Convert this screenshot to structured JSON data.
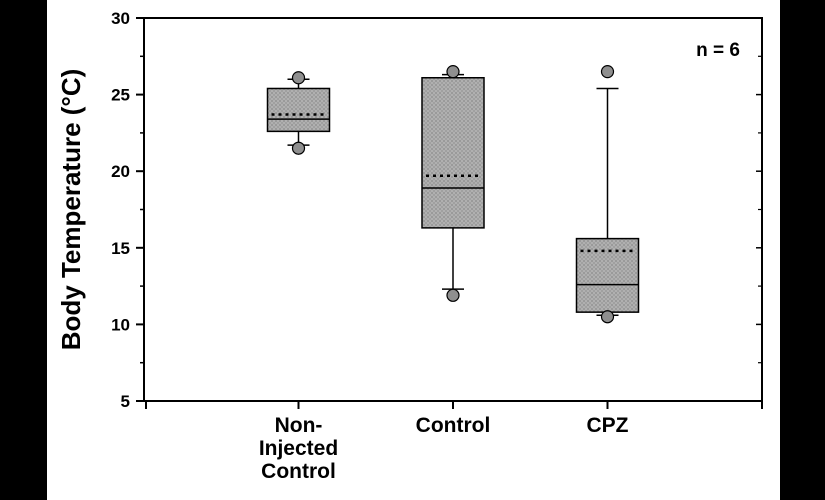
{
  "chart_data": {
    "type": "box",
    "ylabel": "Body Temperature",
    "yunit": "(°C)",
    "ylim": [
      5,
      30
    ],
    "yticks": [
      5,
      10,
      15,
      20,
      25,
      30
    ],
    "annotation": "n = 6",
    "grid": false,
    "categories": [
      [
        "Non-",
        "Injected",
        "Control"
      ],
      [
        "Control"
      ],
      [
        "CPZ"
      ]
    ],
    "boxes": [
      {
        "q1": 22.6,
        "median": 23.4,
        "mean": 23.7,
        "q3": 25.4,
        "whisker_low": 21.7,
        "whisker_high": 26.0,
        "outliers": [
          26.1,
          21.5
        ]
      },
      {
        "q1": 16.3,
        "median": 18.9,
        "mean": 19.7,
        "q3": 26.1,
        "whisker_low": 12.3,
        "whisker_high": 26.3,
        "outliers": [
          26.5,
          11.9
        ]
      },
      {
        "q1": 10.8,
        "median": 12.6,
        "mean": 14.8,
        "q3": 15.6,
        "whisker_low": 10.6,
        "whisker_high": 25.4,
        "outliers": [
          26.5,
          10.5
        ]
      }
    ],
    "colors": {
      "box_fill": "#a9a9a9",
      "outlier_fill": "#8f8f8f",
      "stroke": "#000000"
    }
  }
}
